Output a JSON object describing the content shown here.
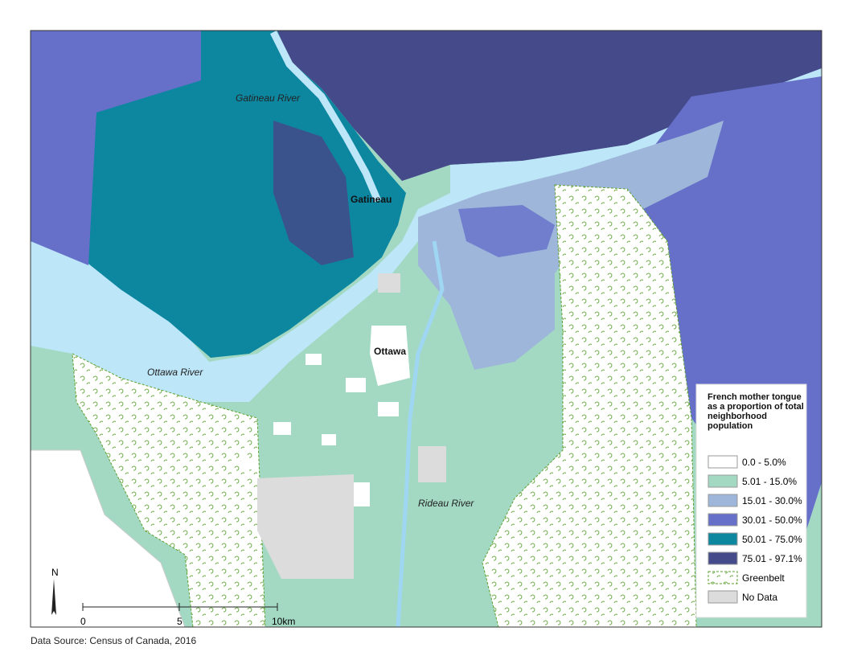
{
  "map": {
    "place_labels": {
      "gatineau_river": "Gatineau River",
      "gatineau": "Gatineau",
      "ottawa": "Ottawa",
      "ottawa_river": "Ottawa River",
      "rideau_river": "Rideau River"
    },
    "legend": {
      "title": "French mother tongue as a proportion of total neighborhood population",
      "items": [
        "0.0 - 5.0%",
        "5.01 - 15.0%",
        "15.01 - 30.0%",
        "30.01 - 50.0%",
        "50.01 - 75.0%",
        "75.01 - 97.1%",
        "Greenbelt",
        "No Data"
      ]
    },
    "north": "N",
    "scale_labels": [
      "0",
      "5",
      "10km"
    ]
  },
  "footer": {
    "source": "Data Source: Census of Canada, 2016"
  }
}
